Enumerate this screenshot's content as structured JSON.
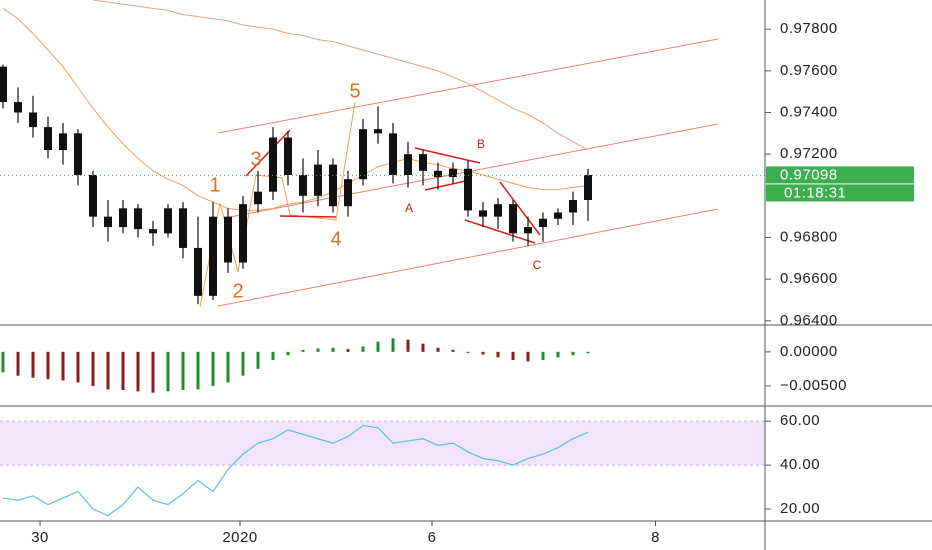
{
  "chart_data": [
    {
      "type": "candlestick",
      "x": [
        0,
        1,
        2,
        3,
        4,
        5,
        6,
        7,
        8,
        9,
        10,
        11,
        12,
        13,
        14,
        15,
        16,
        17,
        18,
        19,
        20,
        21,
        22,
        23,
        24,
        25,
        26,
        27,
        28,
        29,
        30,
        31,
        32,
        33,
        34,
        35,
        36,
        37,
        38,
        39
      ],
      "open": [
        0.9762,
        0.9745,
        0.974,
        0.9733,
        0.9722,
        0.973,
        0.971,
        0.969,
        0.9685,
        0.9694,
        0.9684,
        0.9682,
        0.9694,
        0.9675,
        0.9652,
        0.969,
        0.9668,
        0.9696,
        0.9702,
        0.9728,
        0.971,
        0.97,
        0.9715,
        0.9695,
        0.9708,
        0.9732,
        0.973,
        0.971,
        0.972,
        0.9712,
        0.9709,
        0.9713,
        0.9693,
        0.969,
        0.9696,
        0.9682,
        0.9685,
        0.9689,
        0.9692,
        0.9698
      ],
      "high": [
        0.9763,
        0.9752,
        0.9748,
        0.9738,
        0.9735,
        0.9732,
        0.9712,
        0.9698,
        0.9698,
        0.9696,
        0.9688,
        0.9696,
        0.9697,
        0.969,
        0.9697,
        0.9694,
        0.97,
        0.9712,
        0.9733,
        0.9731,
        0.9718,
        0.9722,
        0.9718,
        0.9712,
        0.9737,
        0.9743,
        0.9735,
        0.9726,
        0.9722,
        0.9716,
        0.9716,
        0.9717,
        0.9697,
        0.9699,
        0.9698,
        0.969,
        0.9692,
        0.9694,
        0.9702,
        0.9713
      ],
      "low": [
        0.9742,
        0.9735,
        0.9728,
        0.9718,
        0.9715,
        0.9705,
        0.9685,
        0.9678,
        0.9682,
        0.968,
        0.9676,
        0.968,
        0.967,
        0.9648,
        0.965,
        0.9663,
        0.9665,
        0.9692,
        0.9698,
        0.9705,
        0.9692,
        0.9695,
        0.9692,
        0.969,
        0.9705,
        0.9725,
        0.9706,
        0.9704,
        0.9705,
        0.9703,
        0.9706,
        0.969,
        0.9685,
        0.9684,
        0.9678,
        0.9676,
        0.9678,
        0.9686,
        0.9686,
        0.9688
      ],
      "close": [
        0.9745,
        0.974,
        0.9733,
        0.9722,
        0.973,
        0.971,
        0.969,
        0.9685,
        0.9694,
        0.9684,
        0.9682,
        0.9694,
        0.9675,
        0.9652,
        0.969,
        0.9668,
        0.9696,
        0.9702,
        0.9728,
        0.971,
        0.97,
        0.9715,
        0.9695,
        0.9708,
        0.9732,
        0.973,
        0.971,
        0.972,
        0.9712,
        0.9709,
        0.9713,
        0.9693,
        0.969,
        0.9696,
        0.9682,
        0.9685,
        0.9689,
        0.9692,
        0.9698,
        0.971
      ],
      "color": "#111111",
      "overlays": [
        {
          "color": "#f0a060",
          "values": [
            0.979,
            0.9785,
            0.9778,
            0.977,
            0.9762,
            0.9752,
            0.9742,
            0.9733,
            0.9725,
            0.9718,
            0.9712,
            0.9708,
            0.9705,
            0.97,
            0.9697,
            0.9694,
            0.9693,
            0.9693,
            0.9694,
            0.9696,
            0.9697,
            0.9699,
            0.9702,
            0.9706,
            0.971,
            0.9714,
            0.9716,
            0.9718,
            0.9716,
            0.9715,
            0.9713,
            0.9712,
            0.971,
            0.9708,
            0.9706,
            0.9704,
            0.9703,
            0.9703,
            0.9704,
            0.9705
          ]
        },
        {
          "color": "#e8a080",
          "values": [
            null,
            null,
            null,
            null,
            null,
            null,
            0.9794,
            0.9793,
            0.9792,
            0.9791,
            0.979,
            0.9789,
            0.9787,
            0.9786,
            0.9785,
            0.9784,
            0.9782,
            0.9781,
            0.978,
            0.9778,
            0.9777,
            0.9775,
            0.9774,
            0.9772,
            0.977,
            0.9768,
            0.9766,
            0.9764,
            0.9762,
            0.976,
            0.9757,
            0.9754,
            0.975,
            0.9746,
            0.9742,
            0.9739,
            0.9735,
            0.973,
            0.9726,
            0.9722
          ]
        }
      ],
      "xlim": [
        -0.2,
        50.8
      ],
      "xticks": [
        {
          "value": 2.47,
          "label": "30"
        },
        {
          "value": 15.8,
          "label": "2020"
        },
        {
          "value": 28.6,
          "label": "6"
        },
        {
          "value": 43.5,
          "label": "8"
        }
      ],
      "ylim": [
        0.9638,
        0.9794
      ],
      "yticks": [
        {
          "value": 0.964,
          "label": "0.96400"
        },
        {
          "value": 0.966,
          "label": "0.96600"
        },
        {
          "value": 0.968,
          "label": "0.96800"
        },
        {
          "value": 0.972,
          "label": "0.97200"
        },
        {
          "value": 0.974,
          "label": "0.97400"
        },
        {
          "value": 0.976,
          "label": "0.97600"
        },
        {
          "value": 0.978,
          "label": "0.97800"
        }
      ],
      "last_price": {
        "value": 0.97098,
        "label": "0.97098"
      },
      "countdown": "01:18:31",
      "price_label_color": "#3dae52",
      "annotations": [
        "1",
        "2",
        "3",
        "4",
        "5",
        "A",
        "B",
        "C"
      ]
    },
    {
      "type": "histogram-bars",
      "values": [
        -0.003,
        -0.0035,
        -0.0038,
        -0.004,
        -0.0042,
        -0.0045,
        -0.005,
        -0.0055,
        -0.0056,
        -0.0058,
        -0.006,
        -0.0058,
        -0.0056,
        -0.0055,
        -0.005,
        -0.0045,
        -0.0035,
        -0.0025,
        -0.0012,
        -0.0005,
        0.0003,
        0.0005,
        0.0006,
        0.0004,
        0.0008,
        0.0015,
        0.002,
        0.0018,
        0.0012,
        0.0006,
        0.0003,
        0.0,
        -0.0004,
        -0.0008,
        -0.0012,
        -0.0014,
        -0.0012,
        -0.0008,
        -0.0005,
        -0.0002
      ],
      "rising_color": "#1e8c2a",
      "falling_color": "#8b1d1d",
      "ylim": [
        -0.0078,
        0.0035
      ],
      "yticks": [
        {
          "value": 0,
          "label": "0.00000"
        },
        {
          "value": -0.005,
          "label": "−0.00500"
        }
      ]
    },
    {
      "type": "line",
      "values": [
        25,
        24,
        26,
        22,
        25,
        28,
        20,
        17,
        22,
        30,
        24,
        22,
        27,
        33,
        28,
        38,
        45,
        50,
        52,
        56,
        54,
        52,
        50,
        53,
        58,
        57,
        50,
        51,
        52,
        49,
        50,
        46,
        43,
        42,
        40,
        43,
        45,
        48,
        52,
        55
      ],
      "color": "#5bbfe0",
      "band": [
        40,
        60
      ],
      "band_color": "#f1e4fb",
      "ylim": [
        15,
        66
      ],
      "yticks": [
        {
          "value": 60,
          "label": "60.00"
        },
        {
          "value": 40,
          "label": "40.00"
        },
        {
          "value": 20,
          "label": "20.00"
        }
      ]
    }
  ]
}
